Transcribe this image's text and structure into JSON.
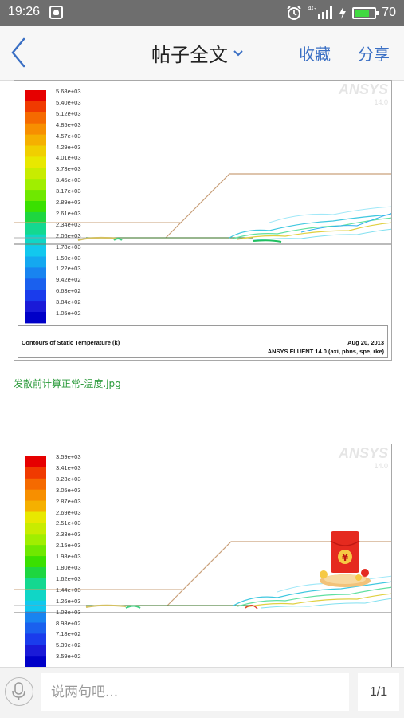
{
  "status_bar": {
    "time": "19:26",
    "network": "4G",
    "battery_level": "70",
    "battery_fraction": 0.7,
    "icons": [
      "alarm-icon",
      "signal-icon",
      "charging-icon",
      "battery-icon"
    ]
  },
  "nav": {
    "title": "帖子全文",
    "collect_label": "收藏",
    "share_label": "分享",
    "accent_color": "#3a6fc4"
  },
  "figures": [
    {
      "logo": "ANSYS",
      "logo_version": "14.0",
      "colorbar_labels": [
        "5.68e+03",
        "5.40e+03",
        "5.12e+03",
        "4.85e+03",
        "4.57e+03",
        "4.29e+03",
        "4.01e+03",
        "3.73e+03",
        "3.45e+03",
        "3.17e+03",
        "2.89e+03",
        "2.61e+03",
        "2.34e+03",
        "2.06e+03",
        "1.78e+03",
        "1.50e+03",
        "1.22e+03",
        "9.42e+02",
        "6.63e+02",
        "3.84e+02",
        "1.05e+02"
      ],
      "footer_title": "Contours of Static Temperature (k)",
      "footer_date": "Aug 20, 2013",
      "footer_solver": "ANSYS FLUENT 14.0 (axi, pbns, spe, rke)",
      "caption": "发散前计算正常-温度.jpg"
    },
    {
      "logo": "ANSYS",
      "logo_version": "14.0",
      "colorbar_labels": [
        "3.59e+03",
        "3.41e+03",
        "3.23e+03",
        "3.05e+03",
        "2.87e+03",
        "2.69e+03",
        "2.51e+03",
        "2.33e+03",
        "2.15e+03",
        "1.98e+03",
        "1.80e+03",
        "1.62e+03",
        "1.44e+03",
        "1.26e+03",
        "1.08e+03",
        "8.98e+02",
        "7.18e+02",
        "5.39e+02",
        "3.59e+02"
      ]
    }
  ],
  "comment": {
    "placeholder": "说两句吧...",
    "page_indicator": "1/1"
  },
  "red_packet_symbol": "¥"
}
